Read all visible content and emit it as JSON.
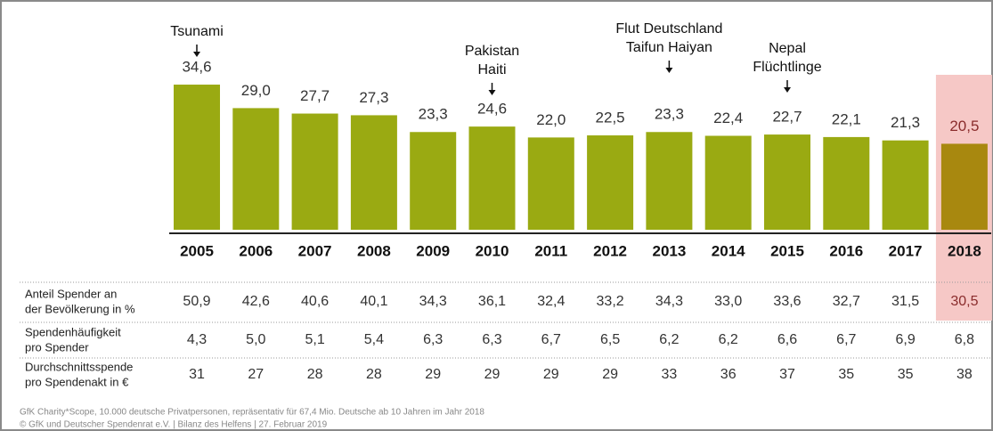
{
  "chart_data": {
    "type": "bar",
    "categories": [
      "2005",
      "2006",
      "2007",
      "2008",
      "2009",
      "2010",
      "2011",
      "2012",
      "2013",
      "2014",
      "2015",
      "2016",
      "2017",
      "2018"
    ],
    "values": [
      34.6,
      29.0,
      27.7,
      27.3,
      23.3,
      24.6,
      22.0,
      22.5,
      23.3,
      22.4,
      22.7,
      22.1,
      21.3,
      20.5
    ],
    "value_labels": [
      "34,6",
      "29,0",
      "27,7",
      "27,3",
      "23,3",
      "24,6",
      "22,0",
      "22,5",
      "23,3",
      "22,4",
      "22,7",
      "22,1",
      "21,3",
      "20,5"
    ],
    "color": "#9aaa12",
    "highlight_category": "2018",
    "highlight_color": "#a8880f",
    "highlight_band_color": "#f6c8c6",
    "annotations": [
      {
        "x": "2005",
        "lines": [
          "Tsunami"
        ]
      },
      {
        "x": "2010",
        "lines": [
          "Pakistan",
          "Haiti"
        ]
      },
      {
        "x": "2013",
        "lines": [
          "Flut Deutschland",
          "Taifun Haiyan"
        ]
      },
      {
        "x": "2015",
        "lines": [
          "Nepal",
          "Flüchtlinge"
        ]
      }
    ],
    "table": [
      {
        "label": [
          "Anteil Spender an",
          "der Bevölkerung in %"
        ],
        "values": [
          "50,9",
          "42,6",
          "40,6",
          "40,1",
          "34,3",
          "36,1",
          "32,4",
          "33,2",
          "34,3",
          "33,0",
          "33,6",
          "32,7",
          "31,5",
          "30,5"
        ]
      },
      {
        "label": [
          "Spendenhäufigkeit",
          "pro Spender"
        ],
        "values": [
          "4,3",
          "5,0",
          "5,1",
          "5,4",
          "6,3",
          "6,3",
          "6,7",
          "6,5",
          "6,2",
          "6,2",
          "6,6",
          "6,7",
          "6,9",
          "6,8"
        ]
      },
      {
        "label": [
          "Durchschnittsspende",
          "pro Spendenakt in €"
        ],
        "values": [
          "31",
          "27",
          "28",
          "28",
          "29",
          "29",
          "29",
          "29",
          "33",
          "36",
          "37",
          "35",
          "35",
          "38"
        ]
      }
    ],
    "footnotes": [
      "GfK Charity*Scope, 10.000 deutsche Privatpersonen, repräsentativ für 67,4 Mio. Deutsche ab 10 Jahren im Jahr 2018",
      "© GfK und Deutscher Spendenrat e.V. | Bilanz des Helfens | 27. Februar 2019"
    ]
  }
}
